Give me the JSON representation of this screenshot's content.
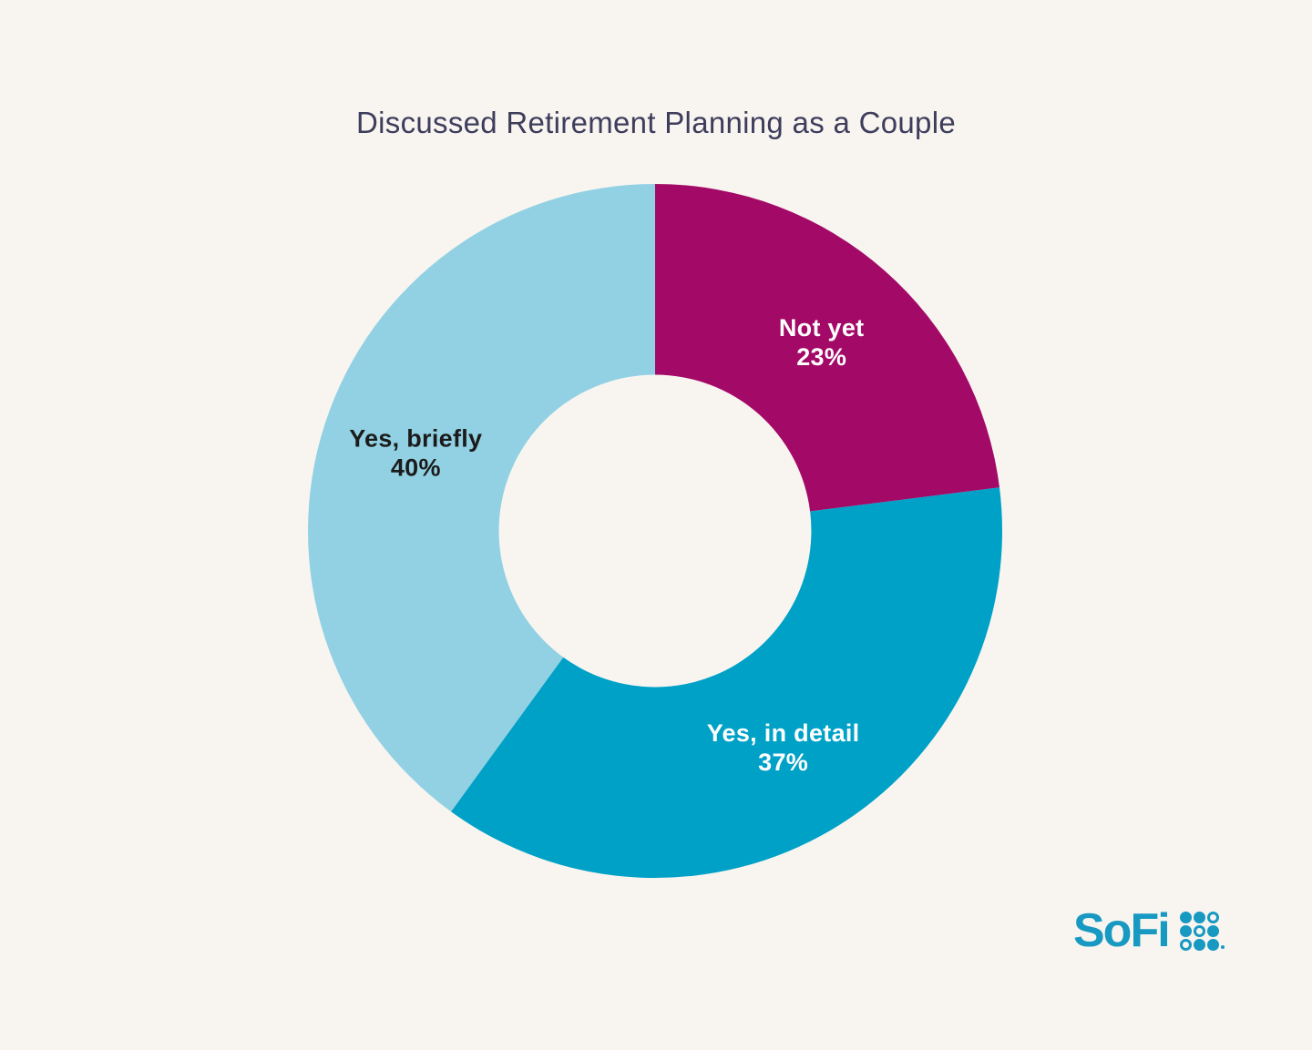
{
  "page": {
    "background": "#F8F5F0"
  },
  "title": "Discussed Retirement Planning as a Couple",
  "title_color": "#3E3D5C",
  "chart_data": {
    "type": "pie",
    "subtype": "donut",
    "title": "Discussed Retirement Planning as a Couple",
    "categories": [
      "Not yet",
      "Yes, in detail",
      "Yes, briefly"
    ],
    "values": [
      23,
      37,
      40
    ],
    "unit": "%",
    "colors": [
      "#A30967",
      "#00A1C7",
      "#92D1E3"
    ],
    "label_colors": [
      "#FFFFFF",
      "#FFFFFF",
      "#1B1B1B"
    ],
    "start_angle_deg": 0,
    "direction": "clockwise",
    "inner_radius_ratio": 0.45,
    "legend": "none",
    "labels_on_slices": true
  },
  "logo": {
    "text": "SoFi",
    "color": "#1899C2",
    "dot_grid": [
      "filled",
      "filled",
      "outline",
      "filled",
      "outline",
      "filled",
      "outline",
      "filled",
      "filled"
    ]
  }
}
